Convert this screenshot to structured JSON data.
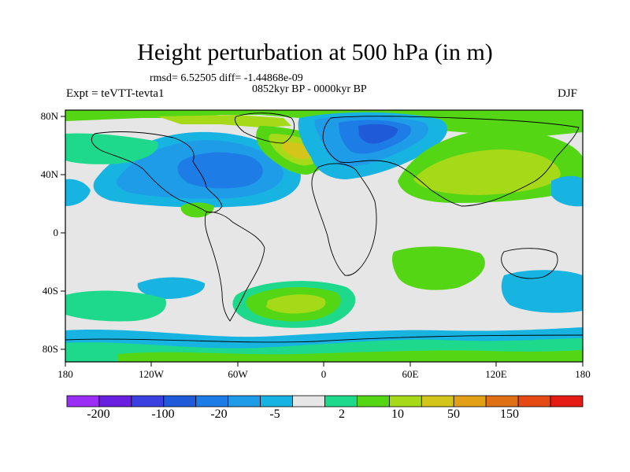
{
  "title": "Height perturbation at 500 hPa (in m)",
  "stats": "rmsd= 6.52505 diff= -1.44868e-09",
  "period": "0852kyr BP - 0000kyr BP",
  "experiment": "Expt = teVTT-tevta1",
  "season": "DJF",
  "latitude_ticks": [
    "80N",
    "40N",
    "0",
    "40S",
    "80S"
  ],
  "longitude_ticks": [
    "180",
    "120W",
    "60W",
    "0",
    "60E",
    "120E",
    "180"
  ],
  "colorbar": {
    "colors": [
      "#9b2ef4",
      "#6a1fe0",
      "#3a3fe0",
      "#1f5ad8",
      "#1e7ce6",
      "#1f9ce8",
      "#17b4e2",
      "#e6e6e6",
      "#1ed88c",
      "#55d615",
      "#a6d918",
      "#d4c51a",
      "#e2a016",
      "#e07014",
      "#e54a14",
      "#e41c14"
    ],
    "labels": [
      "-200",
      "-100",
      "-20",
      "-5",
      "2",
      "10",
      "50",
      "150"
    ]
  },
  "map_colors": {
    "neutral": "#e6e6e6",
    "weak_pos": "#1ed88c",
    "pos": "#55d615",
    "strong_pos": "#a6d918",
    "very_strong_pos": "#d4c51a",
    "max_pos": "#e2a016",
    "weak_neg": "#17b4e2",
    "neg": "#1f9ce8",
    "strong_neg": "#1e7ce6",
    "very_strong_neg": "#1f5ad8"
  }
}
